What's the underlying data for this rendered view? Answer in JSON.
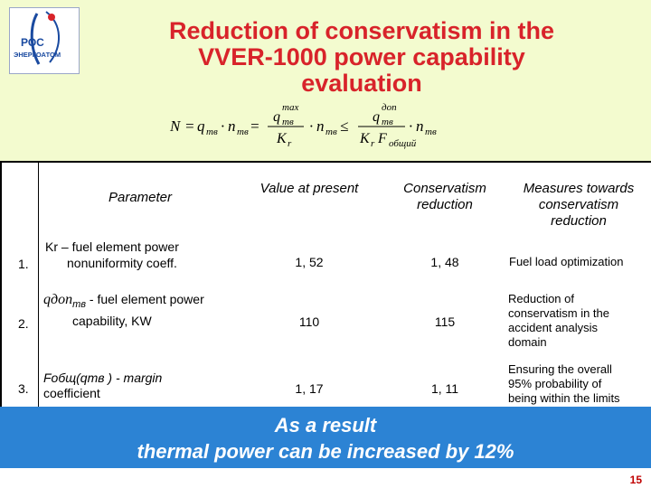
{
  "logo": {
    "top_text": "РОС",
    "bottom_text": "ЭНЕРГОАТОМ"
  },
  "title": {
    "line1": "Reduction of conservatism in the",
    "line2": "VVER-1000 power capability",
    "line3": "evaluation"
  },
  "formula": {
    "N": "N",
    "eq": "=",
    "q": "q",
    "mtv": "тв",
    "dot": "·",
    "n": "n",
    "max": "max",
    "leq": "≤",
    "don": "доп",
    "K": "K",
    "r": "r",
    "F": "F",
    "obshch": "общий"
  },
  "table": {
    "headers": {
      "parameter": "Parameter",
      "value": "Value at present",
      "conservatism": [
        "Conservatism",
        "reduction"
      ],
      "measures": [
        "Measures towards",
        "conservatism",
        "reduction"
      ]
    },
    "rows": [
      {
        "num": "1.",
        "param": [
          "Kr – fuel element power",
          "nonuniformity coeff."
        ],
        "value": "1, 52",
        "reduction": "1, 48",
        "measures": [
          "Fuel load optimization"
        ]
      },
      {
        "num": "2.",
        "param_sym": "qдоп",
        "param_sub": "тв",
        "param": [
          "- fuel element power",
          "capability, KW"
        ],
        "value": "110",
        "reduction": "115",
        "measures": [
          "Reduction of",
          "conservatism in the",
          "accident analysis",
          "domain"
        ]
      },
      {
        "num": "3.",
        "param": [
          "Fобщ(qтв ) - margin",
          "coefficient"
        ],
        "value": "1, 17",
        "reduction": "1, 11",
        "measures": [
          "Ensuring the overall",
          "95% probability of",
          "being within  the limits"
        ]
      }
    ]
  },
  "result": {
    "line1": "As a result",
    "line2": "thermal power can be increased by 12%"
  },
  "page_number": "15",
  "colors": {
    "title": "#d8232a",
    "banner": "#2c83d4",
    "top_bg": "#f3fbcf"
  }
}
